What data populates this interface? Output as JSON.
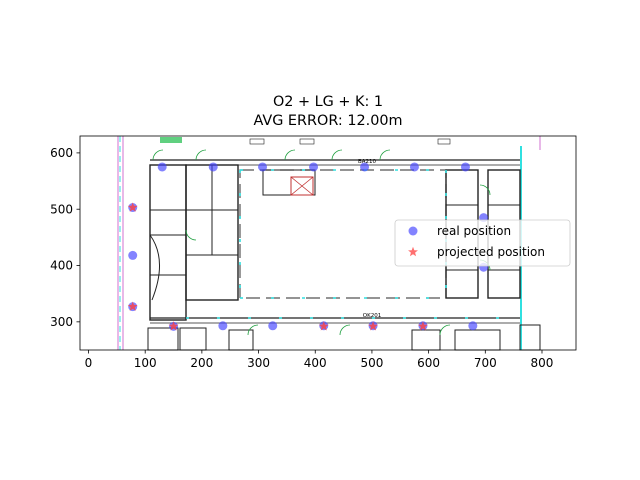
{
  "chart_data": {
    "type": "scatter",
    "title": [
      "O2 + LG + K: 1",
      "AVG ERROR: 12.00m"
    ],
    "xlim": [
      -15,
      860
    ],
    "ylim": [
      250,
      630
    ],
    "xticks": [
      0,
      100,
      200,
      300,
      400,
      500,
      600,
      700,
      800
    ],
    "yticks": [
      300,
      400,
      500,
      600
    ],
    "grid": false,
    "legend_position": "right",
    "series": [
      {
        "name": "real position",
        "marker": "circle",
        "color": "#4040ff",
        "points": [
          [
            130,
            575
          ],
          [
            220,
            575
          ],
          [
            307,
            575
          ],
          [
            397,
            575
          ],
          [
            487,
            575
          ],
          [
            575,
            575
          ],
          [
            665,
            575
          ],
          [
            78,
            503
          ],
          [
            78,
            418
          ],
          [
            78,
            327
          ],
          [
            697,
            485
          ],
          [
            697,
            397
          ],
          [
            150,
            292
          ],
          [
            237,
            293
          ],
          [
            325,
            293
          ],
          [
            415,
            293
          ],
          [
            502,
            293
          ],
          [
            590,
            293
          ],
          [
            678,
            293
          ]
        ]
      },
      {
        "name": "projected position",
        "marker": "star",
        "color": "#ff4040",
        "points": [
          [
            78,
            503
          ],
          [
            78,
            327
          ],
          [
            150,
            292
          ],
          [
            415,
            292
          ],
          [
            502,
            292
          ],
          [
            590,
            292
          ]
        ]
      }
    ],
    "room_labels": [
      "BA210",
      "OK201"
    ]
  }
}
